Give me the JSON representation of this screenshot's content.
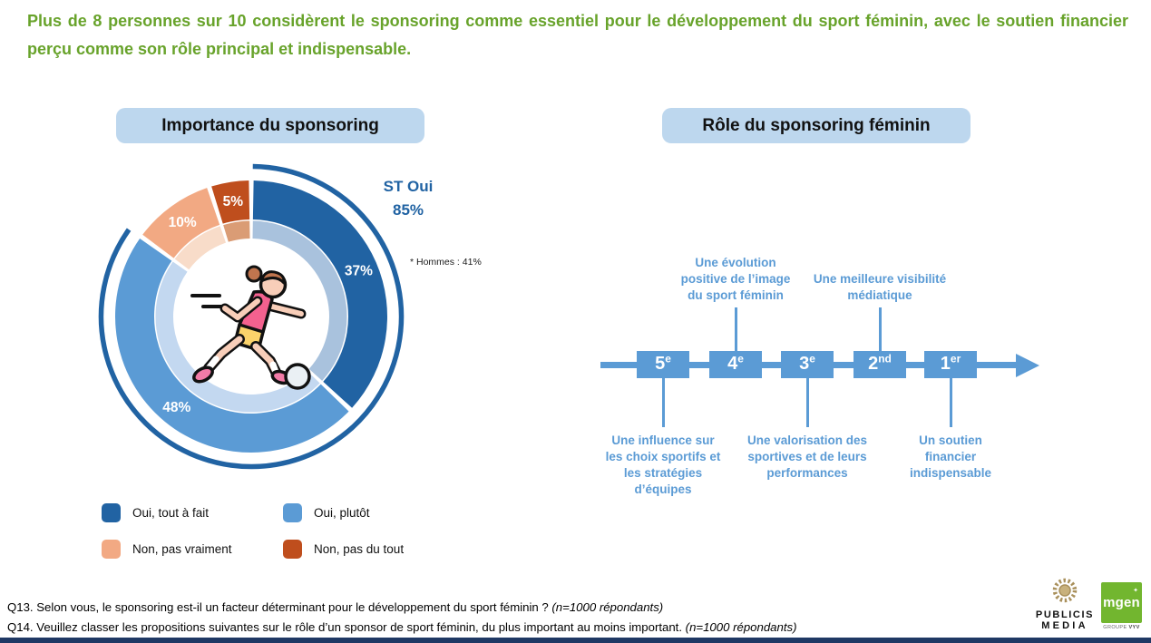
{
  "title": "Plus de 8 personnes sur 10 considèrent le sponsoring comme essentiel pour le développement du sport féminin, avec le soutien financier perçu comme son rôle principal et indispensable.",
  "chart_data": [
    {
      "type": "pie",
      "subtype": "donut",
      "title": "Importance du sponsoring",
      "start": "top",
      "direction": "clockwise",
      "segments": [
        {
          "label": "Oui, tout à fait",
          "value": 37,
          "color": "#2163A3",
          "inner_color": "#A9C2DD"
        },
        {
          "label": "Oui, plutôt",
          "value": 48,
          "color": "#5B9BD5",
          "inner_color": "#C3D8F0"
        },
        {
          "label": "Non, pas vraiment",
          "value": 10,
          "color": "#F2A983",
          "inner_color": "#F8DCC9"
        },
        {
          "label": "Non, pas du tout",
          "value": 5,
          "color": "#BF4E1D",
          "inner_color": "#DA9C75"
        }
      ],
      "callout": {
        "label": "ST Oui",
        "value": "85%",
        "arc_percent": 85,
        "arc_color": "#2163A3"
      },
      "footnote": "* Hommes : 41%"
    },
    {
      "type": "table",
      "subtype": "ranking_timeline",
      "title": "Rôle du sponsoring féminin",
      "axis_order_left_to_right": [
        "5e",
        "4e",
        "3e",
        "2nd",
        "1er"
      ],
      "items": [
        {
          "rank": "5",
          "rank_suffix": "e",
          "position": "below",
          "label": "Une influence sur les choix sportifs et les stratégies d’équipes"
        },
        {
          "rank": "4",
          "rank_suffix": "e",
          "position": "above",
          "label": "Une évolution positive de l’image du sport féminin"
        },
        {
          "rank": "3",
          "rank_suffix": "e",
          "position": "below",
          "label": "Une valorisation des sportives et de leurs performances"
        },
        {
          "rank": "2",
          "rank_suffix": "nd",
          "position": "above",
          "label": "Une meilleure visibilité médiatique"
        },
        {
          "rank": "1",
          "rank_suffix": "er",
          "position": "below",
          "label": "Un soutien financier indispensable"
        }
      ],
      "color": "#5B9BD5"
    }
  ],
  "footer": {
    "q13": {
      "text": "Q13. Selon vous, le sponsoring est-il un facteur déterminant pour le développement du sport féminin ? ",
      "note": "(n=1000 répondants)"
    },
    "q14": {
      "text": "Q14. Veuillez classer les propositions suivantes sur le rôle d’un sponsor de sport féminin, du plus important au moins important. ",
      "note": "(n=1000 répondants)"
    }
  },
  "logos": {
    "publicis": {
      "line1": "PUBLICIS",
      "line2": "MEDIA"
    },
    "mgen": {
      "name": "mgen",
      "sub_prefix": "GROUPE ",
      "sub_bold": "VYV"
    }
  },
  "colors": {
    "title_green": "#68A32B",
    "header_pill_bg": "#BDD7EE",
    "dark_blue": "#2163A3",
    "timeline_blue": "#5B9BD5",
    "bottom_bar_navy": "#1F3864",
    "mgen_green": "#72B62F",
    "publicis_gold": "#A9905B"
  }
}
